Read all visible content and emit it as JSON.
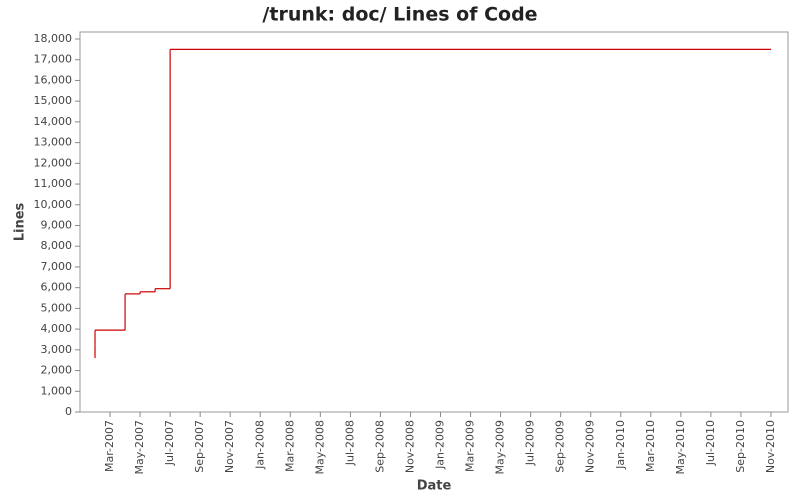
{
  "chart_data": {
    "type": "step-line",
    "title": "/trunk: doc/ Lines of Code",
    "x_label": "Date",
    "y_label": "Lines",
    "series": [
      {
        "color": "#cc0000",
        "x": [
          "2007-02",
          "2007-02",
          "2007-02",
          "2007-04",
          "2007-04",
          "2007-04",
          "2007-05",
          "2007-06",
          "2007-07",
          "2007-07",
          "2007-07",
          "2010-11"
        ],
        "values": [
          2600,
          3250,
          3950,
          5000,
          5600,
          5700,
          5800,
          5950,
          17300,
          17400,
          17500,
          17500
        ]
      }
    ],
    "xlim": [
      "2007-01",
      "2010-12"
    ],
    "xticks": [
      {
        "value": "2007-03",
        "label": "Mar-2007"
      },
      {
        "value": "2007-05",
        "label": "May-2007"
      },
      {
        "value": "2007-07",
        "label": "Jul-2007"
      },
      {
        "value": "2007-09",
        "label": "Sep-2007"
      },
      {
        "value": "2007-11",
        "label": "Nov-2007"
      },
      {
        "value": "2008-01",
        "label": "Jan-2008"
      },
      {
        "value": "2008-03",
        "label": "Mar-2008"
      },
      {
        "value": "2008-05",
        "label": "May-2008"
      },
      {
        "value": "2008-07",
        "label": "Jul-2008"
      },
      {
        "value": "2008-09",
        "label": "Sep-2008"
      },
      {
        "value": "2008-11",
        "label": "Nov-2008"
      },
      {
        "value": "2009-01",
        "label": "Jan-2009"
      },
      {
        "value": "2009-03",
        "label": "Mar-2009"
      },
      {
        "value": "2009-05",
        "label": "May-2009"
      },
      {
        "value": "2009-07",
        "label": "Jul-2009"
      },
      {
        "value": "2009-09",
        "label": "Sep-2009"
      },
      {
        "value": "2009-11",
        "label": "Nov-2009"
      },
      {
        "value": "2010-01",
        "label": "Jan-2010"
      },
      {
        "value": "2010-03",
        "label": "Mar-2010"
      },
      {
        "value": "2010-05",
        "label": "May-2010"
      },
      {
        "value": "2010-07",
        "label": "Jul-2010"
      },
      {
        "value": "2010-09",
        "label": "Sep-2010"
      },
      {
        "value": "2010-11",
        "label": "Nov-2010"
      }
    ],
    "ylim": [
      0,
      18000
    ],
    "yticks": [
      0,
      {
        "value": 1000,
        "label": "1,000"
      },
      {
        "value": 2000,
        "label": "2,000"
      },
      {
        "value": 3000,
        "label": "3,000"
      },
      {
        "value": 4000,
        "label": "4,000"
      },
      {
        "value": 5000,
        "label": "5,000"
      },
      {
        "value": 6000,
        "label": "6,000"
      },
      {
        "value": 7000,
        "label": "7,000"
      },
      {
        "value": 8000,
        "label": "8,000"
      },
      {
        "value": 9000,
        "label": "9,000"
      },
      {
        "value": 10000,
        "label": "10,000"
      },
      {
        "value": 11000,
        "label": "11,000"
      },
      {
        "value": 12000,
        "label": "12,000"
      },
      {
        "value": 13000,
        "label": "13,000"
      },
      {
        "value": 14000,
        "label": "14,000"
      },
      {
        "value": 15000,
        "label": "15,000"
      },
      {
        "value": 16000,
        "label": "16,000"
      },
      {
        "value": 17000,
        "label": "17,000"
      },
      {
        "value": 18000,
        "label": "18,000"
      }
    ],
    "grid": false
  }
}
